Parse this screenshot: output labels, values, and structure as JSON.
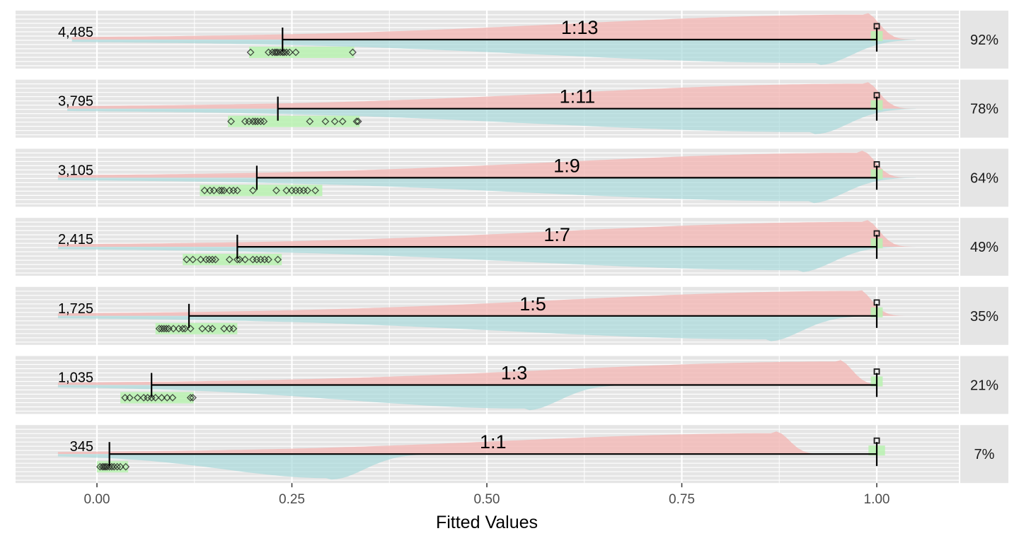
{
  "chart_data": {
    "type": "faceted-density",
    "xlabel": "Fitted Values",
    "xlim": [
      -0.05,
      1.105
    ],
    "x_ticks": [
      0.0,
      0.25,
      0.5,
      0.75,
      1.0
    ],
    "x_tick_labels": [
      "0.00",
      "0.25",
      "0.50",
      "0.75",
      "1.00"
    ],
    "colors": {
      "panel_bg": "#e5e5e5",
      "strip_bg": "#e5e5e5",
      "grid": "#ffffff",
      "negative_density": "#f2b8b5",
      "positive_density": "#a9dadb",
      "negative_band": "#b8f2b0",
      "positive_band": "#b8f2b0",
      "point": "#1a1a1a",
      "line": "#000000"
    },
    "panels": [
      {
        "ratio_label": "1:13",
        "count_label": "4,485",
        "strip_label": "92%",
        "neg_mean": 0.238,
        "neg_band": [
          0.195,
          0.33
        ],
        "neg_points": [
          0.197,
          0.22,
          0.225,
          0.228,
          0.23,
          0.232,
          0.235,
          0.238,
          0.24,
          0.243,
          0.247,
          0.255,
          0.328
        ],
        "pos_value": 1.0,
        "pos_band": [
          0.996,
          1.004
        ],
        "neg_density_peak": 0.985,
        "neg_density_height": 0.48,
        "pos_density_peak": 0.925,
        "pos_density_height": 0.45
      },
      {
        "ratio_label": "1:11",
        "count_label": "3,795",
        "strip_label": "78%",
        "neg_mean": 0.232,
        "neg_band": [
          0.168,
          0.337
        ],
        "neg_points": [
          0.172,
          0.19,
          0.195,
          0.2,
          0.203,
          0.206,
          0.21,
          0.214,
          0.273,
          0.293,
          0.305,
          0.315,
          0.333,
          0.335
        ],
        "pos_value": 1.0,
        "pos_band": [
          0.996,
          1.004
        ],
        "neg_density_peak": 0.985,
        "neg_density_height": 0.48,
        "pos_density_peak": 0.92,
        "pos_density_height": 0.45
      },
      {
        "ratio_label": "1:9",
        "count_label": "3,105",
        "strip_label": "64%",
        "neg_mean": 0.205,
        "neg_band": [
          0.132,
          0.289
        ],
        "neg_points": [
          0.138,
          0.145,
          0.15,
          0.157,
          0.16,
          0.163,
          0.17,
          0.175,
          0.18,
          0.2,
          0.23,
          0.243,
          0.25,
          0.255,
          0.26,
          0.265,
          0.27,
          0.28
        ],
        "pos_value": 1.0,
        "pos_band": [
          0.996,
          1.004
        ],
        "neg_density_peak": 0.98,
        "neg_density_height": 0.48,
        "pos_density_peak": 0.915,
        "pos_density_height": 0.45
      },
      {
        "ratio_label": "1:7",
        "count_label": "2,415",
        "strip_label": "49%",
        "neg_mean": 0.18,
        "neg_band": [
          0.11,
          0.237
        ],
        "neg_points": [
          0.115,
          0.123,
          0.133,
          0.14,
          0.144,
          0.148,
          0.152,
          0.17,
          0.18,
          0.183,
          0.19,
          0.2,
          0.205,
          0.21,
          0.215,
          0.22,
          0.232
        ],
        "pos_value": 1.0,
        "pos_band": [
          0.996,
          1.004
        ],
        "neg_density_peak": 0.985,
        "neg_density_height": 0.48,
        "pos_density_peak": 0.9,
        "pos_density_height": 0.45
      },
      {
        "ratio_label": "1:5",
        "count_label": "1,725",
        "strip_label": "35%",
        "neg_mean": 0.118,
        "neg_band": [
          0.075,
          0.18
        ],
        "neg_points": [
          0.08,
          0.083,
          0.086,
          0.089,
          0.092,
          0.098,
          0.105,
          0.11,
          0.113,
          0.12,
          0.135,
          0.143,
          0.148,
          0.163,
          0.17,
          0.175
        ],
        "pos_value": 1.0,
        "pos_band": [
          0.996,
          1.004
        ],
        "neg_density_peak": 0.975,
        "neg_density_height": 0.48,
        "pos_density_peak": 0.86,
        "pos_density_height": 0.45
      },
      {
        "ratio_label": "1:3",
        "count_label": "1,035",
        "strip_label": "21%",
        "neg_mean": 0.07,
        "neg_band": [
          0.03,
          0.124
        ],
        "neg_points": [
          0.036,
          0.042,
          0.052,
          0.06,
          0.065,
          0.07,
          0.075,
          0.083,
          0.09,
          0.097,
          0.12,
          0.123
        ],
        "pos_value": 1.0,
        "pos_band": [
          0.996,
          1.004
        ],
        "neg_density_peak": 0.95,
        "neg_density_height": 0.45,
        "pos_density_peak": 0.55,
        "pos_density_height": 0.45
      },
      {
        "ratio_label": "1:1",
        "count_label": "345",
        "strip_label": "7%",
        "neg_mean": 0.016,
        "neg_band": [
          0.0,
          0.04
        ],
        "neg_points": [
          0.004,
          0.007,
          0.009,
          0.011,
          0.013,
          0.016,
          0.019,
          0.022,
          0.026,
          0.03,
          0.037
        ],
        "pos_value": 1.0,
        "pos_band": [
          0.993,
          1.007
        ],
        "neg_density_peak": 0.87,
        "neg_density_height": 0.4,
        "pos_density_peak": 0.3,
        "pos_density_height": 0.45
      }
    ]
  }
}
